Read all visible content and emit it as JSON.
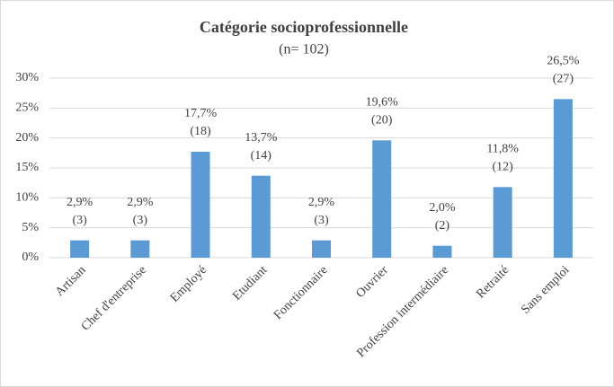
{
  "chart_data": {
    "type": "bar",
    "title": "Catégorie socioprofessionnelle",
    "subtitle": "(n= 102)",
    "categories": [
      "Artisan",
      "Chef d'entreprise",
      "Employé",
      "Etudiant",
      "Fonctionnaire",
      "Ouvrier",
      "Profession intermédiaire",
      "Retraité",
      "Sans emploi"
    ],
    "values": [
      2.9,
      2.9,
      17.7,
      13.7,
      2.9,
      19.6,
      2.0,
      11.8,
      26.5
    ],
    "value_labels": [
      "2,9%",
      "2,9%",
      "17,7%",
      "13,7%",
      "2,9%",
      "19,6%",
      "2,0%",
      "11,8%",
      "26,5%"
    ],
    "count_labels": [
      "(3)",
      "(3)",
      "(18)",
      "(14)",
      "(3)",
      "(20)",
      "(2)",
      "(12)",
      "(27)"
    ],
    "color": "#5b9bd5",
    "ylim": [
      0,
      30
    ],
    "yticks": [
      {
        "value": 0,
        "label": "0%"
      },
      {
        "value": 5,
        "label": "5%"
      },
      {
        "value": 10,
        "label": "10%"
      },
      {
        "value": 15,
        "label": "15%"
      },
      {
        "value": 20,
        "label": "20%"
      },
      {
        "value": 25,
        "label": "25%"
      },
      {
        "value": 30,
        "label": "30%"
      }
    ],
    "grid": true
  }
}
